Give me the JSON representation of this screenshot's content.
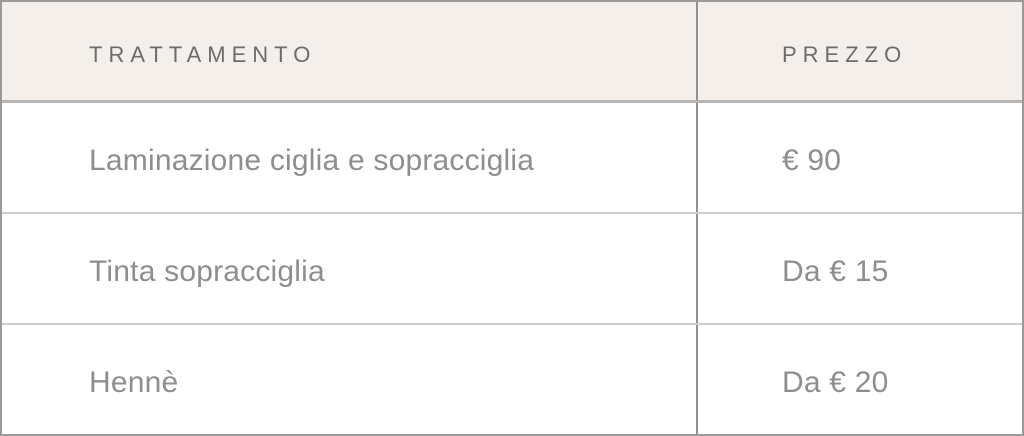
{
  "table": {
    "columns": [
      {
        "key": "trattamento",
        "label": "TRATTAMENTO"
      },
      {
        "key": "prezzo",
        "label": "PREZZO"
      }
    ],
    "rows": [
      {
        "trattamento": "Laminazione ciglia e sopracciglia",
        "prezzo": "€ 90"
      },
      {
        "trattamento": "Tinta sopracciglia",
        "prezzo": "Da € 15"
      },
      {
        "trattamento": "Hennè",
        "prezzo": "Da € 20"
      }
    ]
  },
  "colors": {
    "header_bg": "#f4efea",
    "header_text": "#6e6c69",
    "body_text": "#8e8e8e",
    "outer_border": "#9b9a98",
    "column_divider": "#929190",
    "header_divider": "#b7b5b3",
    "row_divider": "#d0cfce"
  }
}
